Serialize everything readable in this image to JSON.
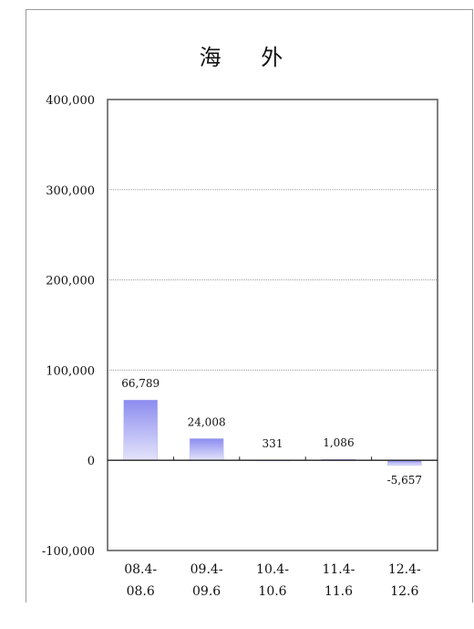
{
  "chart_data": {
    "type": "bar",
    "title": "海 外",
    "categories": [
      [
        "08.4-",
        "08.6"
      ],
      [
        "09.4-",
        "09.6"
      ],
      [
        "10.4-",
        "10.6"
      ],
      [
        "11.4-",
        "11.6"
      ],
      [
        "12.4-",
        "12.6"
      ]
    ],
    "values": [
      66789,
      24008,
      331,
      1086,
      -5657
    ],
    "value_labels": [
      "66,789",
      "24,008",
      "331",
      "1,086",
      "-5,657"
    ],
    "ylim": [
      -100000,
      400000
    ],
    "yticks": [
      400000,
      300000,
      200000,
      100000,
      0,
      -100000
    ],
    "ytick_labels": [
      "400,000",
      "300,000",
      "200,000",
      "100,000",
      "0",
      "-100,000"
    ],
    "grid": true,
    "bar_color_top": "#8c8cf0",
    "bar_color_bottom": "#e4e4fb"
  }
}
